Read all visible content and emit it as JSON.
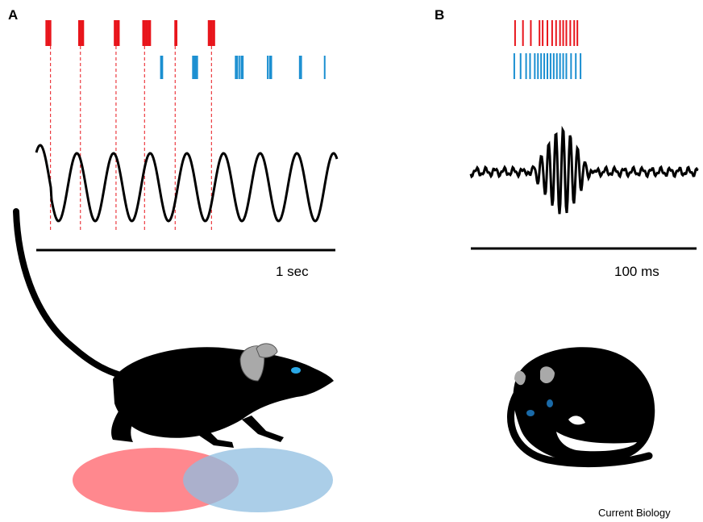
{
  "panels": {
    "a": {
      "label": "A",
      "scale_bar_label": "1 sec",
      "red_spike_times": [
        0.14,
        0.16,
        0.18,
        0.2,
        0.6,
        0.62,
        0.64,
        0.66,
        1.1,
        1.12,
        1.14,
        1.16,
        1.5,
        1.52,
        1.54,
        1.56,
        1.58,
        1.6,
        1.95,
        1.97,
        2.42,
        2.44,
        2.46,
        2.48,
        2.5
      ],
      "blue_spike_times": [
        1.75,
        1.77,
        2.2,
        2.22,
        2.24,
        2.26,
        2.8,
        2.82,
        2.85,
        2.88,
        2.9,
        3.25,
        3.28,
        3.3,
        3.7,
        3.72,
        4.05
      ],
      "reference_line_times": [
        0.2,
        0.62,
        1.12,
        1.52,
        1.95,
        2.46
      ]
    },
    "b": {
      "label": "B",
      "scale_bar_label": "100 ms",
      "red_spike_times": [
        5,
        15,
        25,
        36,
        40,
        46,
        52,
        57,
        62,
        66,
        70,
        75,
        80,
        84
      ],
      "blue_spike_times": [
        4,
        12,
        19,
        24,
        30,
        34,
        38,
        42,
        46,
        50,
        54,
        58,
        62,
        66,
        70,
        76,
        82,
        88
      ]
    }
  },
  "colors": {
    "red_spikes": "#e8141b",
    "blue_spikes": "#1a8fd1",
    "red_field": "#ff7b82",
    "blue_field": "#8fbde0",
    "ink": "#000000",
    "ear": "#a9a9a9",
    "eye": "#2aa8e6"
  },
  "icons": {
    "running_mouse": "running-mouse-icon",
    "sleeping_mouse": "sleeping-mouse-icon"
  },
  "credit": "Current Biology"
}
